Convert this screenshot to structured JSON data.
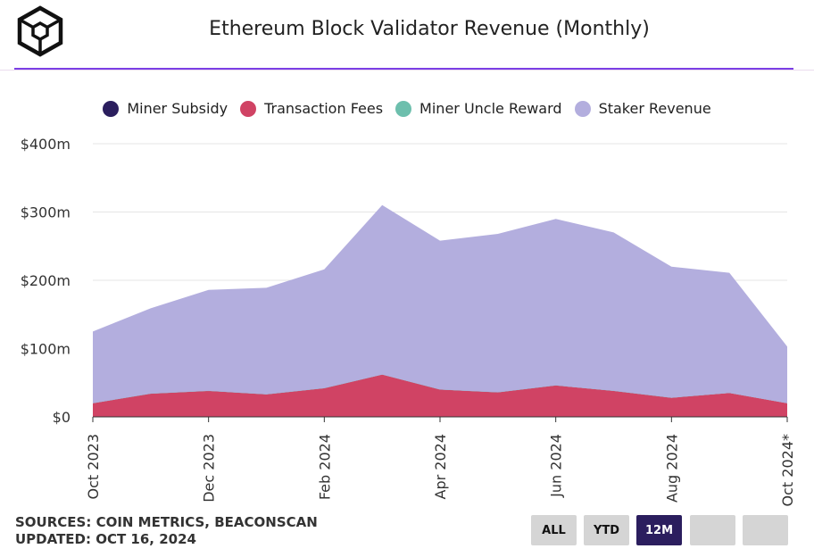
{
  "header": {
    "title": "Ethereum Block Validator Revenue (Monthly)"
  },
  "chart_data": {
    "type": "area",
    "stacked": true,
    "title": "Ethereum Block Validator Revenue (Monthly)",
    "x": [
      "Oct 2023",
      "Nov 2023",
      "Dec 2023",
      "Jan 2024",
      "Feb 2024",
      "Mar 2024",
      "Apr 2024",
      "May 2024",
      "Jun 2024",
      "Jul 2024",
      "Aug 2024",
      "Sep 2024",
      "Oct 2024*"
    ],
    "x_tick_labels": [
      "Oct 2023",
      "Dec 2023",
      "Feb 2024",
      "Apr 2024",
      "Jun 2024",
      "Aug 2024",
      "Oct 2024*"
    ],
    "y_tick_labels": [
      "$0",
      "$100m",
      "$200m",
      "$300m",
      "$400m"
    ],
    "ylim": [
      0,
      400
    ],
    "series": [
      {
        "name": "Miner Subsidy",
        "color": "#2b1e5e",
        "values": [
          0,
          0,
          0,
          0,
          0,
          0,
          0,
          0,
          0,
          0,
          0,
          0,
          0
        ]
      },
      {
        "name": "Transaction Fees",
        "color": "#d04364",
        "values": [
          20,
          34,
          38,
          33,
          42,
          62,
          40,
          36,
          46,
          38,
          28,
          35,
          20
        ]
      },
      {
        "name": "Miner Uncle Reward",
        "color": "#6dbfad",
        "values": [
          0,
          0,
          0,
          0,
          0,
          0,
          0,
          0,
          0,
          0,
          0,
          0,
          0
        ]
      },
      {
        "name": "Staker Revenue",
        "color": "#b3aede",
        "values": [
          105,
          125,
          148,
          156,
          174,
          248,
          218,
          232,
          244,
          232,
          192,
          176,
          83
        ]
      }
    ],
    "grid": true,
    "legend_position": "top"
  },
  "footer": {
    "sources": "SOURCES: COIN METRICS, BEACONSCAN",
    "updated": "UPDATED: OCT 16, 2024"
  },
  "range_buttons": [
    {
      "label": "ALL",
      "active": false
    },
    {
      "label": "YTD",
      "active": false
    },
    {
      "label": "12M",
      "active": true
    },
    {
      "label": "",
      "active": false
    },
    {
      "label": "",
      "active": false
    }
  ]
}
